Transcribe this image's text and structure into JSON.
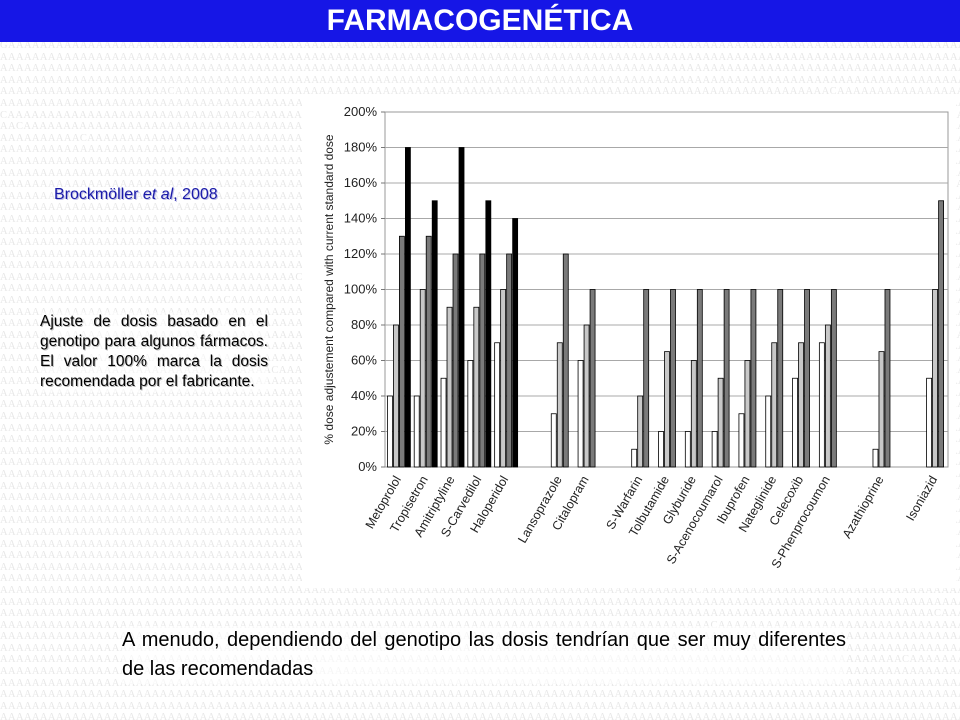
{
  "slide": {
    "title": "FARMACOGENÉTICA",
    "citation_pre": "Brockmöller ",
    "citation_italic": "et al",
    "citation_post": ", 2008",
    "note": "Ajuste de dosis basado en el genotipo para algunos fármacos. El valor 100% marca la dosis recomendada por el fabricante.",
    "footer": "A menudo, dependiendo del genotipo las dosis tendrían que ser muy diferentes de las recomendadas"
  },
  "colors": {
    "title_bar": "#1616e6",
    "bar_light": "#ffffff",
    "bar_mid": "#c8c8c8",
    "bar_dark": "#7a7a7a",
    "bar_black": "#000000"
  },
  "chart_data": {
    "type": "bar",
    "ylabel": "% dose adjustement compared with current standard dose",
    "ylim": [
      0,
      200
    ],
    "yticks": [
      "0%",
      "20%",
      "40%",
      "60%",
      "80%",
      "100%",
      "120%",
      "140%",
      "160%",
      "180%",
      "200%"
    ],
    "grid": true,
    "legend": "none",
    "categories": [
      "Metoprolol",
      "Tropisetron",
      "Amitriptyline",
      "S-Carvedilol",
      "Haloperidol",
      "Lansoprazole",
      "Citalopram",
      "S-Warfarin",
      "Tolbutamide",
      "Glyburide",
      "S-Acenocoumarol",
      "Ibuprofen",
      "Nateglinide",
      "Celecoxib",
      "S-Phenprocoumon",
      "Azathioprine",
      "Isoniazid"
    ],
    "groups": [
      [
        40,
        80,
        130,
        180
      ],
      [
        40,
        100,
        130,
        150
      ],
      [
        50,
        90,
        120,
        180
      ],
      [
        60,
        90,
        120,
        150
      ],
      [
        70,
        100,
        120,
        140
      ],
      [
        30,
        70,
        120
      ],
      [
        60,
        80,
        100
      ],
      [
        10,
        40,
        100
      ],
      [
        20,
        65,
        100
      ],
      [
        20,
        60,
        100
      ],
      [
        20,
        50,
        100
      ],
      [
        30,
        60,
        100
      ],
      [
        40,
        70,
        100
      ],
      [
        50,
        70,
        100
      ],
      [
        70,
        80,
        100
      ],
      [
        10,
        65,
        100
      ],
      [
        50,
        100,
        150
      ]
    ]
  }
}
